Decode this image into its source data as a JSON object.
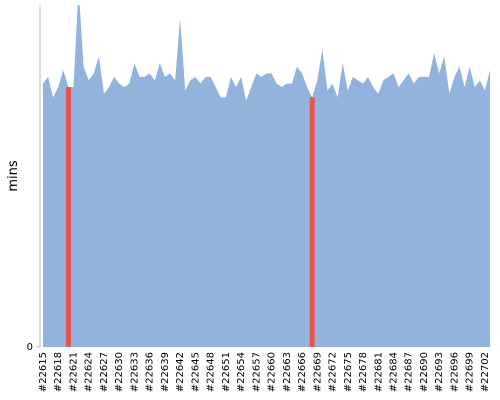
{
  "chart_data": {
    "type": "area",
    "y_label": "mins",
    "categories": [
      "#22615",
      null,
      null,
      "#22618",
      null,
      null,
      "#22621",
      null,
      null,
      "#22624",
      null,
      null,
      "#22627",
      null,
      null,
      "#22630",
      null,
      null,
      "#22633",
      null,
      null,
      "#22636",
      null,
      null,
      "#22639",
      null,
      null,
      "#22642",
      null,
      null,
      "#22645",
      null,
      null,
      "#22648",
      null,
      null,
      "#22651",
      null,
      null,
      "#22654",
      null,
      null,
      "#22657",
      null,
      null,
      "#22660",
      null,
      null,
      "#22663",
      null,
      null,
      "#22666",
      null,
      null,
      "#22669",
      null,
      null,
      "#22672",
      null,
      null,
      "#22675",
      null,
      null,
      "#22678",
      null,
      null,
      "#22681",
      null,
      null,
      "#22684",
      null,
      null,
      "#22687",
      null,
      null,
      "#22690",
      null,
      null,
      "#22693",
      null,
      null,
      "#22696",
      null,
      null,
      "#22699",
      null,
      null,
      "#22702",
      null
    ],
    "series": [
      {
        "color": "#92b4dc",
        "values": [
          77,
          79,
          73,
          76,
          81,
          76,
          76,
          105,
          82,
          78,
          80,
          85,
          74,
          76,
          79,
          77,
          76,
          77,
          83,
          79,
          79,
          80,
          78,
          83,
          79,
          80,
          78,
          96,
          75,
          78,
          79,
          77,
          79,
          79,
          76,
          73,
          73,
          79,
          76,
          79,
          72,
          76,
          80,
          79,
          80,
          80,
          77,
          76,
          77,
          77,
          82,
          80,
          76,
          73,
          78,
          87,
          75,
          77,
          73,
          83,
          75,
          79,
          78,
          77,
          79,
          76,
          74,
          78,
          79,
          80,
          76,
          78,
          80,
          77,
          79,
          79,
          79,
          86,
          80,
          85,
          74,
          79,
          82,
          76,
          82,
          76,
          78,
          75,
          81
        ]
      },
      {
        "color": "#e8534f",
        "values": [
          null,
          null,
          null,
          null,
          null,
          76,
          null,
          null,
          null,
          null,
          null,
          null,
          null,
          null,
          null,
          null,
          null,
          null,
          null,
          null,
          null,
          null,
          null,
          null,
          null,
          null,
          null,
          null,
          null,
          null,
          null,
          null,
          null,
          null,
          null,
          null,
          null,
          null,
          null,
          null,
          null,
          null,
          null,
          null,
          null,
          null,
          null,
          null,
          null,
          null,
          null,
          null,
          null,
          73,
          null,
          null,
          null,
          null,
          null,
          null,
          null,
          null,
          null,
          null,
          null,
          null,
          null,
          null,
          null,
          null,
          null,
          null,
          null,
          null,
          null,
          null,
          null,
          null,
          null,
          null,
          null,
          null,
          null,
          null,
          null,
          null,
          null,
          null,
          null
        ]
      }
    ],
    "ylim": [
      0,
      100
    ],
    "yticks": [
      0
    ]
  }
}
